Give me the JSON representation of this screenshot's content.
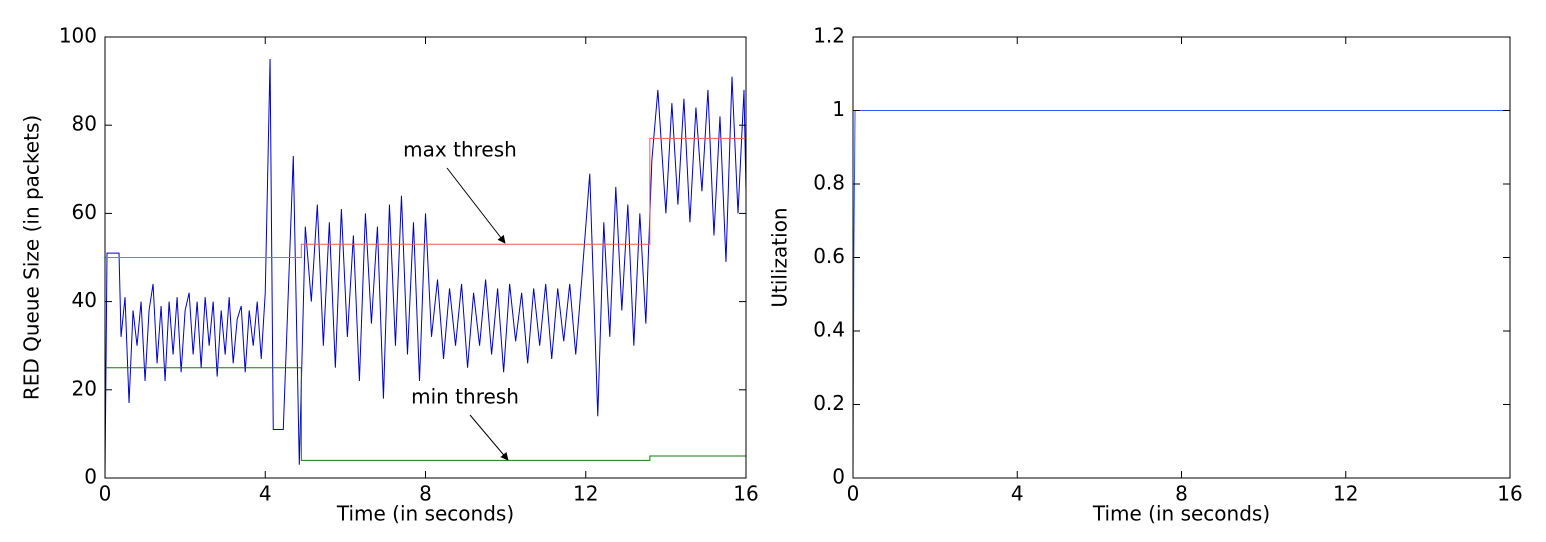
{
  "chart_data": [
    {
      "type": "line",
      "xlabel": "Time (in seconds)",
      "ylabel": "RED Queue Size (in packets)",
      "xlim": [
        0,
        16
      ],
      "ylim": [
        0,
        100
      ],
      "xticks": [
        0,
        4,
        8,
        12,
        16
      ],
      "yticks": [
        0,
        20,
        40,
        60,
        80,
        100
      ],
      "annotations": [
        "max thresh",
        "min thresh"
      ],
      "series": [
        {
          "color": "#0000cc",
          "x": [
            0,
            0.05,
            0.35,
            0.4,
            0.5,
            0.6,
            0.7,
            0.8,
            0.9,
            1.0,
            1.1,
            1.2,
            1.3,
            1.4,
            1.5,
            1.6,
            1.7,
            1.8,
            1.9,
            2.0,
            2.1,
            2.2,
            2.3,
            2.4,
            2.5,
            2.6,
            2.7,
            2.8,
            2.9,
            3.0,
            3.1,
            3.2,
            3.3,
            3.4,
            3.5,
            3.6,
            3.7,
            3.8,
            3.9,
            4.0,
            4.12,
            4.2,
            4.45,
            4.7,
            4.85,
            5.0,
            5.15,
            5.3,
            5.45,
            5.6,
            5.75,
            5.9,
            6.05,
            6.2,
            6.35,
            6.5,
            6.65,
            6.8,
            6.95,
            7.1,
            7.25,
            7.4,
            7.55,
            7.7,
            7.85,
            8.0,
            8.15,
            8.3,
            8.45,
            8.6,
            8.75,
            8.9,
            9.05,
            9.2,
            9.35,
            9.5,
            9.65,
            9.8,
            9.95,
            10.1,
            10.25,
            10.4,
            10.55,
            10.7,
            10.85,
            11.0,
            11.15,
            11.3,
            11.45,
            11.6,
            11.75,
            11.9,
            12.1,
            12.3,
            12.45,
            12.6,
            12.75,
            12.9,
            13.05,
            13.2,
            13.35,
            13.5,
            13.65,
            13.8,
            14.0,
            14.15,
            14.3,
            14.45,
            14.6,
            14.75,
            14.9,
            15.05,
            15.2,
            15.35,
            15.5,
            15.65,
            15.8,
            15.95,
            16.0
          ],
          "values": [
            0,
            51,
            51,
            32,
            41,
            17,
            38,
            30,
            40,
            22,
            38,
            44,
            26,
            39,
            22,
            40,
            28,
            41,
            24,
            38,
            42,
            28,
            40,
            25,
            41,
            30,
            40,
            23,
            38,
            28,
            41,
            26,
            36,
            39,
            24,
            38,
            30,
            40,
            27,
            42,
            95,
            11,
            11,
            73,
            3,
            57,
            40,
            62,
            30,
            58,
            25,
            61,
            32,
            55,
            22,
            60,
            35,
            57,
            18,
            62,
            30,
            64,
            28,
            58,
            22,
            60,
            32,
            45,
            27,
            43,
            30,
            44,
            25,
            42,
            30,
            45,
            28,
            43,
            24,
            44,
            31,
            42,
            26,
            43,
            30,
            44,
            27,
            43,
            31,
            44,
            28,
            45,
            69,
            14,
            58,
            32,
            66,
            38,
            62,
            30,
            60,
            35,
            72,
            88,
            60,
            85,
            62,
            86,
            58,
            84,
            65,
            88,
            55,
            82,
            49,
            91,
            60,
            88,
            65
          ]
        },
        {
          "color": "#ff5555",
          "x": [
            0,
            4.9,
            4.9,
            13.6,
            13.6,
            16
          ],
          "values": [
            50,
            50,
            53,
            53,
            77,
            77
          ]
        },
        {
          "color": "#117711",
          "x": [
            0,
            4.9,
            4.9,
            13.6,
            13.6,
            16
          ],
          "values": [
            25,
            25,
            4,
            4,
            5,
            5
          ]
        }
      ]
    },
    {
      "type": "line",
      "xlabel": "Time (in seconds)",
      "ylabel": "Utilization",
      "xlim": [
        0,
        16
      ],
      "ylim": [
        0,
        1.2
      ],
      "xticks": [
        0,
        4,
        8,
        12,
        16
      ],
      "yticks": [
        0,
        0.2,
        0.4,
        0.6,
        0.8,
        1,
        1.2
      ],
      "series": [
        {
          "color": "#3355ff",
          "x": [
            0,
            0.02,
            0.05,
            16
          ],
          "values": [
            0,
            0.6,
            1,
            1
          ]
        }
      ]
    }
  ]
}
